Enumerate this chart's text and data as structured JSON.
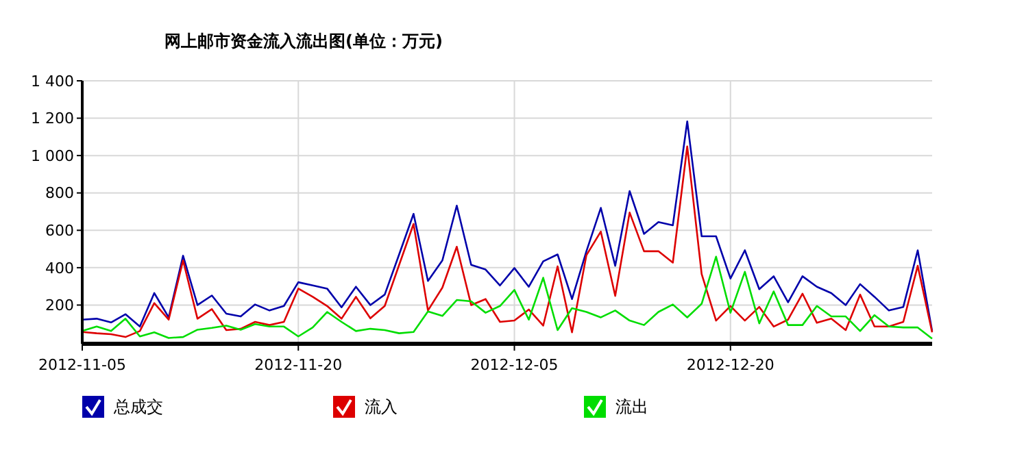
{
  "chart_data": {
    "type": "line",
    "title": "网上邮市资金流入流出图(单位：万元)",
    "x": [
      "2012-11-05",
      "2012-11-06",
      "2012-11-07",
      "2012-11-08",
      "2012-11-09",
      "2012-11-10",
      "2012-11-11",
      "2012-11-12",
      "2012-11-13",
      "2012-11-14",
      "2012-11-15",
      "2012-11-16",
      "2012-11-17",
      "2012-11-18",
      "2012-11-19",
      "2012-11-20",
      "2012-11-21",
      "2012-11-22",
      "2012-11-23",
      "2012-11-24",
      "2012-11-25",
      "2012-11-26",
      "2012-11-27",
      "2012-11-28",
      "2012-11-29",
      "2012-11-30",
      "2012-12-01",
      "2012-12-02",
      "2012-12-03",
      "2012-12-04",
      "2012-12-05",
      "2012-12-06",
      "2012-12-07",
      "2012-12-08",
      "2012-12-09",
      "2012-12-10",
      "2012-12-11",
      "2012-12-12",
      "2012-12-13",
      "2012-12-14",
      "2012-12-15",
      "2012-12-16",
      "2012-12-17",
      "2012-12-18",
      "2012-12-19",
      "2012-12-20",
      "2012-12-21",
      "2012-12-22",
      "2012-12-23",
      "2012-12-24",
      "2012-12-25",
      "2012-12-26",
      "2012-12-27",
      "2012-12-28",
      "2012-12-29",
      "2012-12-30",
      "2012-12-31",
      "2013-01-01",
      "2013-01-02",
      "2013-01-03"
    ],
    "series": [
      {
        "name": "总成交",
        "color": "#0000aa",
        "values": [
          122,
          127,
          107,
          151,
          85,
          264,
          134,
          464,
          200,
          251,
          154,
          139,
          203,
          171,
          195,
          322,
          305,
          288,
          188,
          298,
          200,
          256,
          471,
          688,
          329,
          439,
          732,
          415,
          390,
          305,
          398,
          298,
          434,
          471,
          232,
          488,
          720,
          410,
          810,
          581,
          644,
          627,
          1183,
          568,
          568,
          342,
          493,
          285,
          354,
          215,
          354,
          298,
          264,
          200,
          312,
          244,
          171,
          190,
          493,
          61
        ]
      },
      {
        "name": "流入",
        "color": "#dd0000",
        "values": [
          56,
          49,
          44,
          29,
          61,
          210,
          122,
          439,
          127,
          178,
          66,
          73,
          110,
          93,
          110,
          288,
          244,
          195,
          127,
          244,
          129,
          195,
          415,
          634,
          171,
          293,
          512,
          200,
          232,
          110,
          117,
          176,
          90,
          407,
          54,
          467,
          593,
          249,
          695,
          488,
          488,
          427,
          1049,
          366,
          117,
          195,
          117,
          190,
          85,
          122,
          261,
          105,
          127,
          66,
          256,
          85,
          85,
          110,
          410,
          54
        ]
      },
      {
        "name": "流出",
        "color": "#00dd00",
        "values": [
          61,
          85,
          61,
          127,
          32,
          54,
          24,
          29,
          68,
          78,
          90,
          68,
          98,
          85,
          85,
          32,
          80,
          163,
          110,
          61,
          73,
          66,
          49,
          56,
          166,
          142,
          227,
          220,
          159,
          195,
          281,
          122,
          346,
          66,
          183,
          163,
          134,
          171,
          117,
          93,
          163,
          203,
          134,
          207,
          459,
          159,
          378,
          102,
          273,
          93,
          93,
          195,
          139,
          139,
          61,
          146,
          85,
          80,
          80,
          20
        ]
      }
    ],
    "xlim": [
      "2012-11-05",
      "2013-01-03"
    ],
    "xticks": [
      "2012-11-05",
      "2012-11-20",
      "2012-12-05",
      "2012-12-20"
    ],
    "ylim": [
      0,
      1400
    ],
    "yticks": [
      {
        "value": 200,
        "label": "200"
      },
      {
        "value": 400,
        "label": "400"
      },
      {
        "value": 600,
        "label": "600"
      },
      {
        "value": 800,
        "label": "800"
      },
      {
        "value": 1000,
        "label": "1 000"
      },
      {
        "value": 1200,
        "label": "1 200"
      },
      {
        "value": 1400,
        "label": "1 400"
      }
    ],
    "grid": true,
    "legend": "bottom",
    "marker": "none",
    "line_style": "solid"
  }
}
